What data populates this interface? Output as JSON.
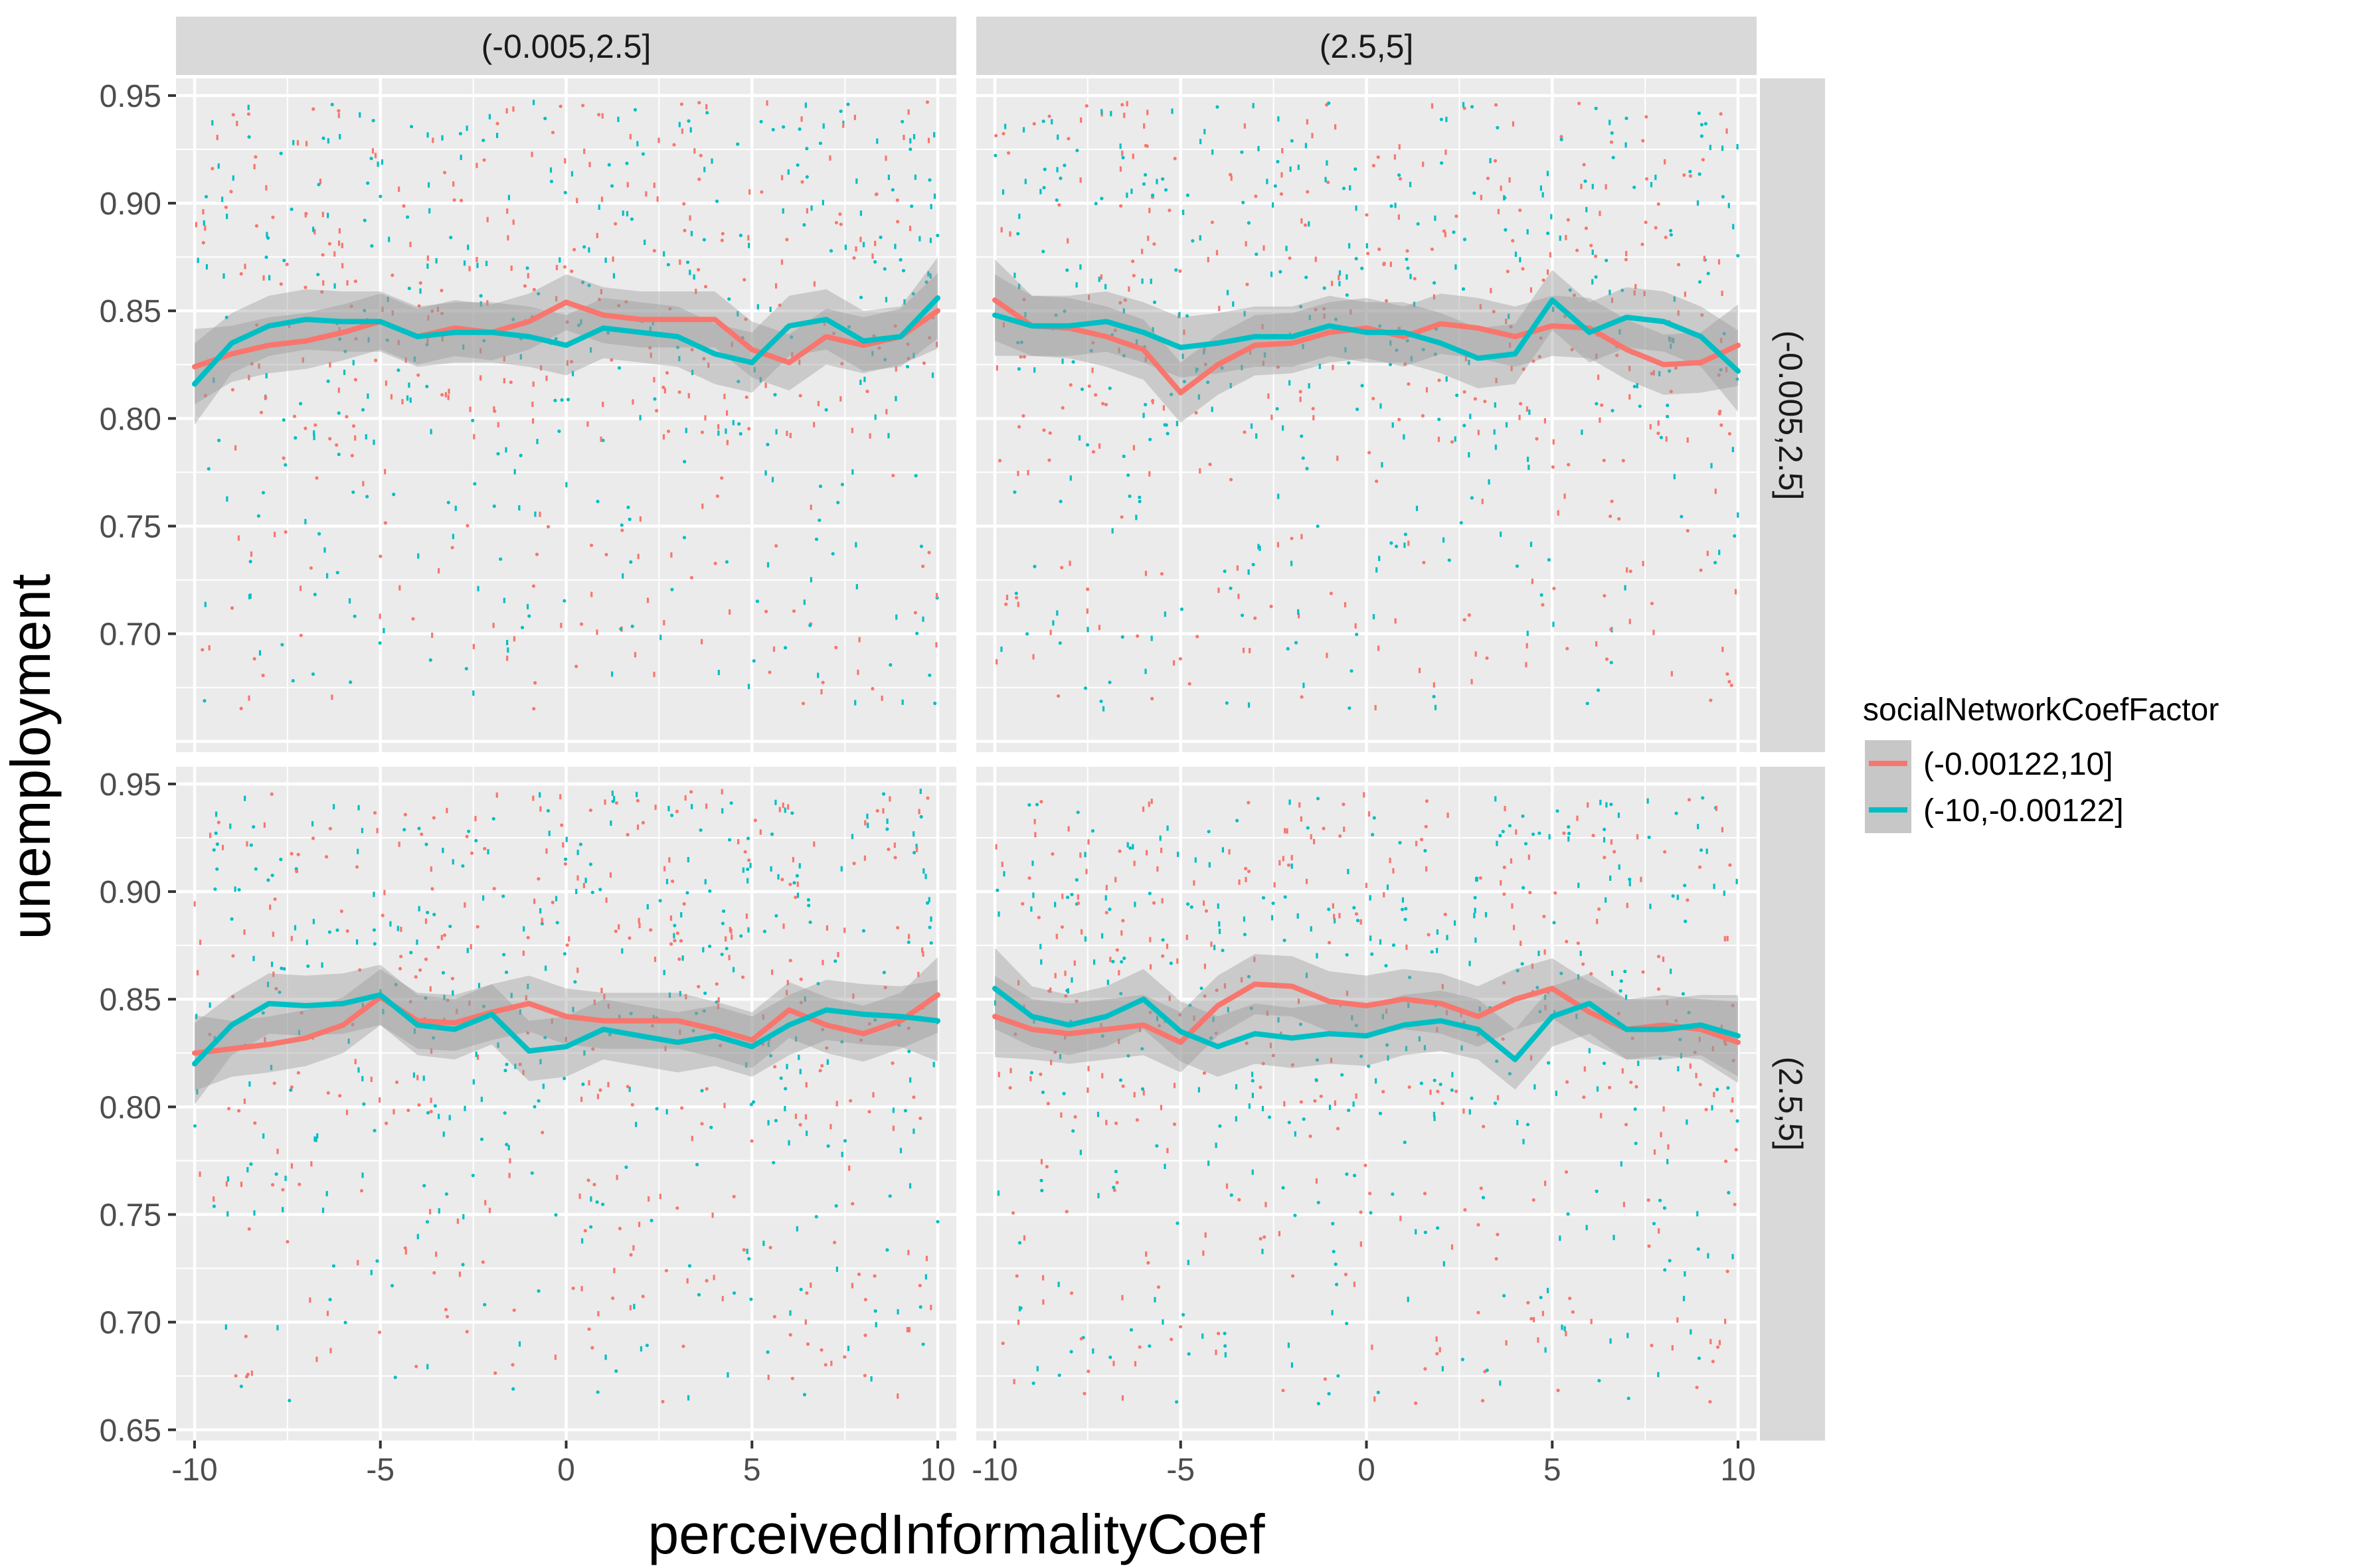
{
  "chart_data": {
    "type": "scatter",
    "facet_columns": [
      "(-0.005,2.5]",
      "(2.5,5]"
    ],
    "facet_rows": [
      "(-0.005,2.5]",
      "(2.5,5]"
    ],
    "xlabel": "perceivedInformalityCoef",
    "ylabel": "unemployment",
    "xlim": [
      -10.5,
      10.5
    ],
    "ylim": [
      0.645,
      0.958
    ],
    "x_ticks": [
      -10,
      -5,
      0,
      5,
      10
    ],
    "x_tick_labels": [
      "-10",
      "-5",
      "0",
      "5",
      "10"
    ],
    "y_ticks_top": [
      0.7,
      0.75,
      0.8,
      0.85,
      0.9,
      0.95
    ],
    "y_tick_labels_top": [
      "0.70",
      "0.75",
      "0.80",
      "0.85",
      "0.90",
      "0.95"
    ],
    "y_ticks_bottom": [
      0.65,
      0.7,
      0.75,
      0.8,
      0.85,
      0.9,
      0.95
    ],
    "y_tick_labels_bottom": [
      "0.65",
      "0.70",
      "0.75",
      "0.80",
      "0.85",
      "0.90",
      "0.95"
    ],
    "legend": {
      "title": "socialNetworkCoefFactor",
      "position": "right",
      "entries": [
        {
          "label": "(-0.00122,10]",
          "color": "#F8766D"
        },
        {
          "label": "(-10,-0.00122]",
          "color": "#00BFC4"
        }
      ]
    },
    "colors": {
      "series_a": "#F8766D",
      "series_b": "#00BFC4",
      "panel_bg": "#EBEBEB",
      "strip_bg": "#D9D9D9",
      "ribbon": "#999999"
    },
    "grid": true,
    "smooth_x": [
      -10,
      -9,
      -8,
      -7,
      -6,
      -5,
      -4,
      -3,
      -2,
      -1,
      0,
      1,
      2,
      3,
      4,
      5,
      6,
      7,
      8,
      9,
      10
    ],
    "panels": [
      {
        "row": 0,
        "col": 0,
        "series": [
          {
            "name": "(-0.00122,10]",
            "fit": [
              0.824,
              0.83,
              0.834,
              0.836,
              0.84,
              0.845,
              0.838,
              0.842,
              0.84,
              0.845,
              0.854,
              0.848,
              0.846,
              0.846,
              0.846,
              0.832,
              0.826,
              0.838,
              0.834,
              0.838,
              0.85
            ],
            "band": 0.013
          },
          {
            "name": "(-10,-0.00122]",
            "fit": [
              0.816,
              0.835,
              0.843,
              0.846,
              0.845,
              0.845,
              0.838,
              0.84,
              0.84,
              0.838,
              0.834,
              0.842,
              0.84,
              0.838,
              0.83,
              0.826,
              0.843,
              0.846,
              0.836,
              0.838,
              0.856
            ],
            "band": 0.014
          }
        ]
      },
      {
        "row": 0,
        "col": 1,
        "series": [
          {
            "name": "(-0.00122,10]",
            "fit": [
              0.855,
              0.843,
              0.842,
              0.838,
              0.832,
              0.812,
              0.825,
              0.834,
              0.835,
              0.84,
              0.842,
              0.838,
              0.844,
              0.842,
              0.838,
              0.843,
              0.842,
              0.832,
              0.825,
              0.826,
              0.834
            ],
            "band": 0.014
          },
          {
            "name": "(-10,-0.00122]",
            "fit": [
              0.848,
              0.843,
              0.843,
              0.845,
              0.84,
              0.833,
              0.835,
              0.838,
              0.838,
              0.843,
              0.84,
              0.84,
              0.835,
              0.828,
              0.83,
              0.855,
              0.84,
              0.847,
              0.845,
              0.838,
              0.822
            ],
            "band": 0.014
          }
        ]
      },
      {
        "row": 1,
        "col": 0,
        "series": [
          {
            "name": "(-0.00122,10]",
            "fit": [
              0.825,
              0.827,
              0.829,
              0.832,
              0.838,
              0.851,
              0.84,
              0.839,
              0.844,
              0.848,
              0.842,
              0.84,
              0.84,
              0.84,
              0.836,
              0.831,
              0.845,
              0.838,
              0.834,
              0.84,
              0.852
            ],
            "band": 0.013
          },
          {
            "name": "(-10,-0.00122]",
            "fit": [
              0.82,
              0.838,
              0.848,
              0.847,
              0.848,
              0.852,
              0.838,
              0.836,
              0.843,
              0.826,
              0.828,
              0.836,
              0.833,
              0.83,
              0.833,
              0.828,
              0.838,
              0.845,
              0.843,
              0.842,
              0.84
            ],
            "band": 0.014
          }
        ]
      },
      {
        "row": 1,
        "col": 1,
        "series": [
          {
            "name": "(-0.00122,10]",
            "fit": [
              0.842,
              0.836,
              0.834,
              0.836,
              0.838,
              0.83,
              0.847,
              0.857,
              0.856,
              0.849,
              0.847,
              0.85,
              0.848,
              0.842,
              0.85,
              0.855,
              0.844,
              0.836,
              0.838,
              0.836,
              0.83
            ],
            "band": 0.014
          },
          {
            "name": "(-10,-0.00122]",
            "fit": [
              0.855,
              0.842,
              0.838,
              0.842,
              0.85,
              0.835,
              0.828,
              0.834,
              0.832,
              0.834,
              0.833,
              0.838,
              0.84,
              0.836,
              0.822,
              0.842,
              0.848,
              0.836,
              0.836,
              0.838,
              0.833
            ],
            "band": 0.014
          }
        ]
      }
    ]
  }
}
